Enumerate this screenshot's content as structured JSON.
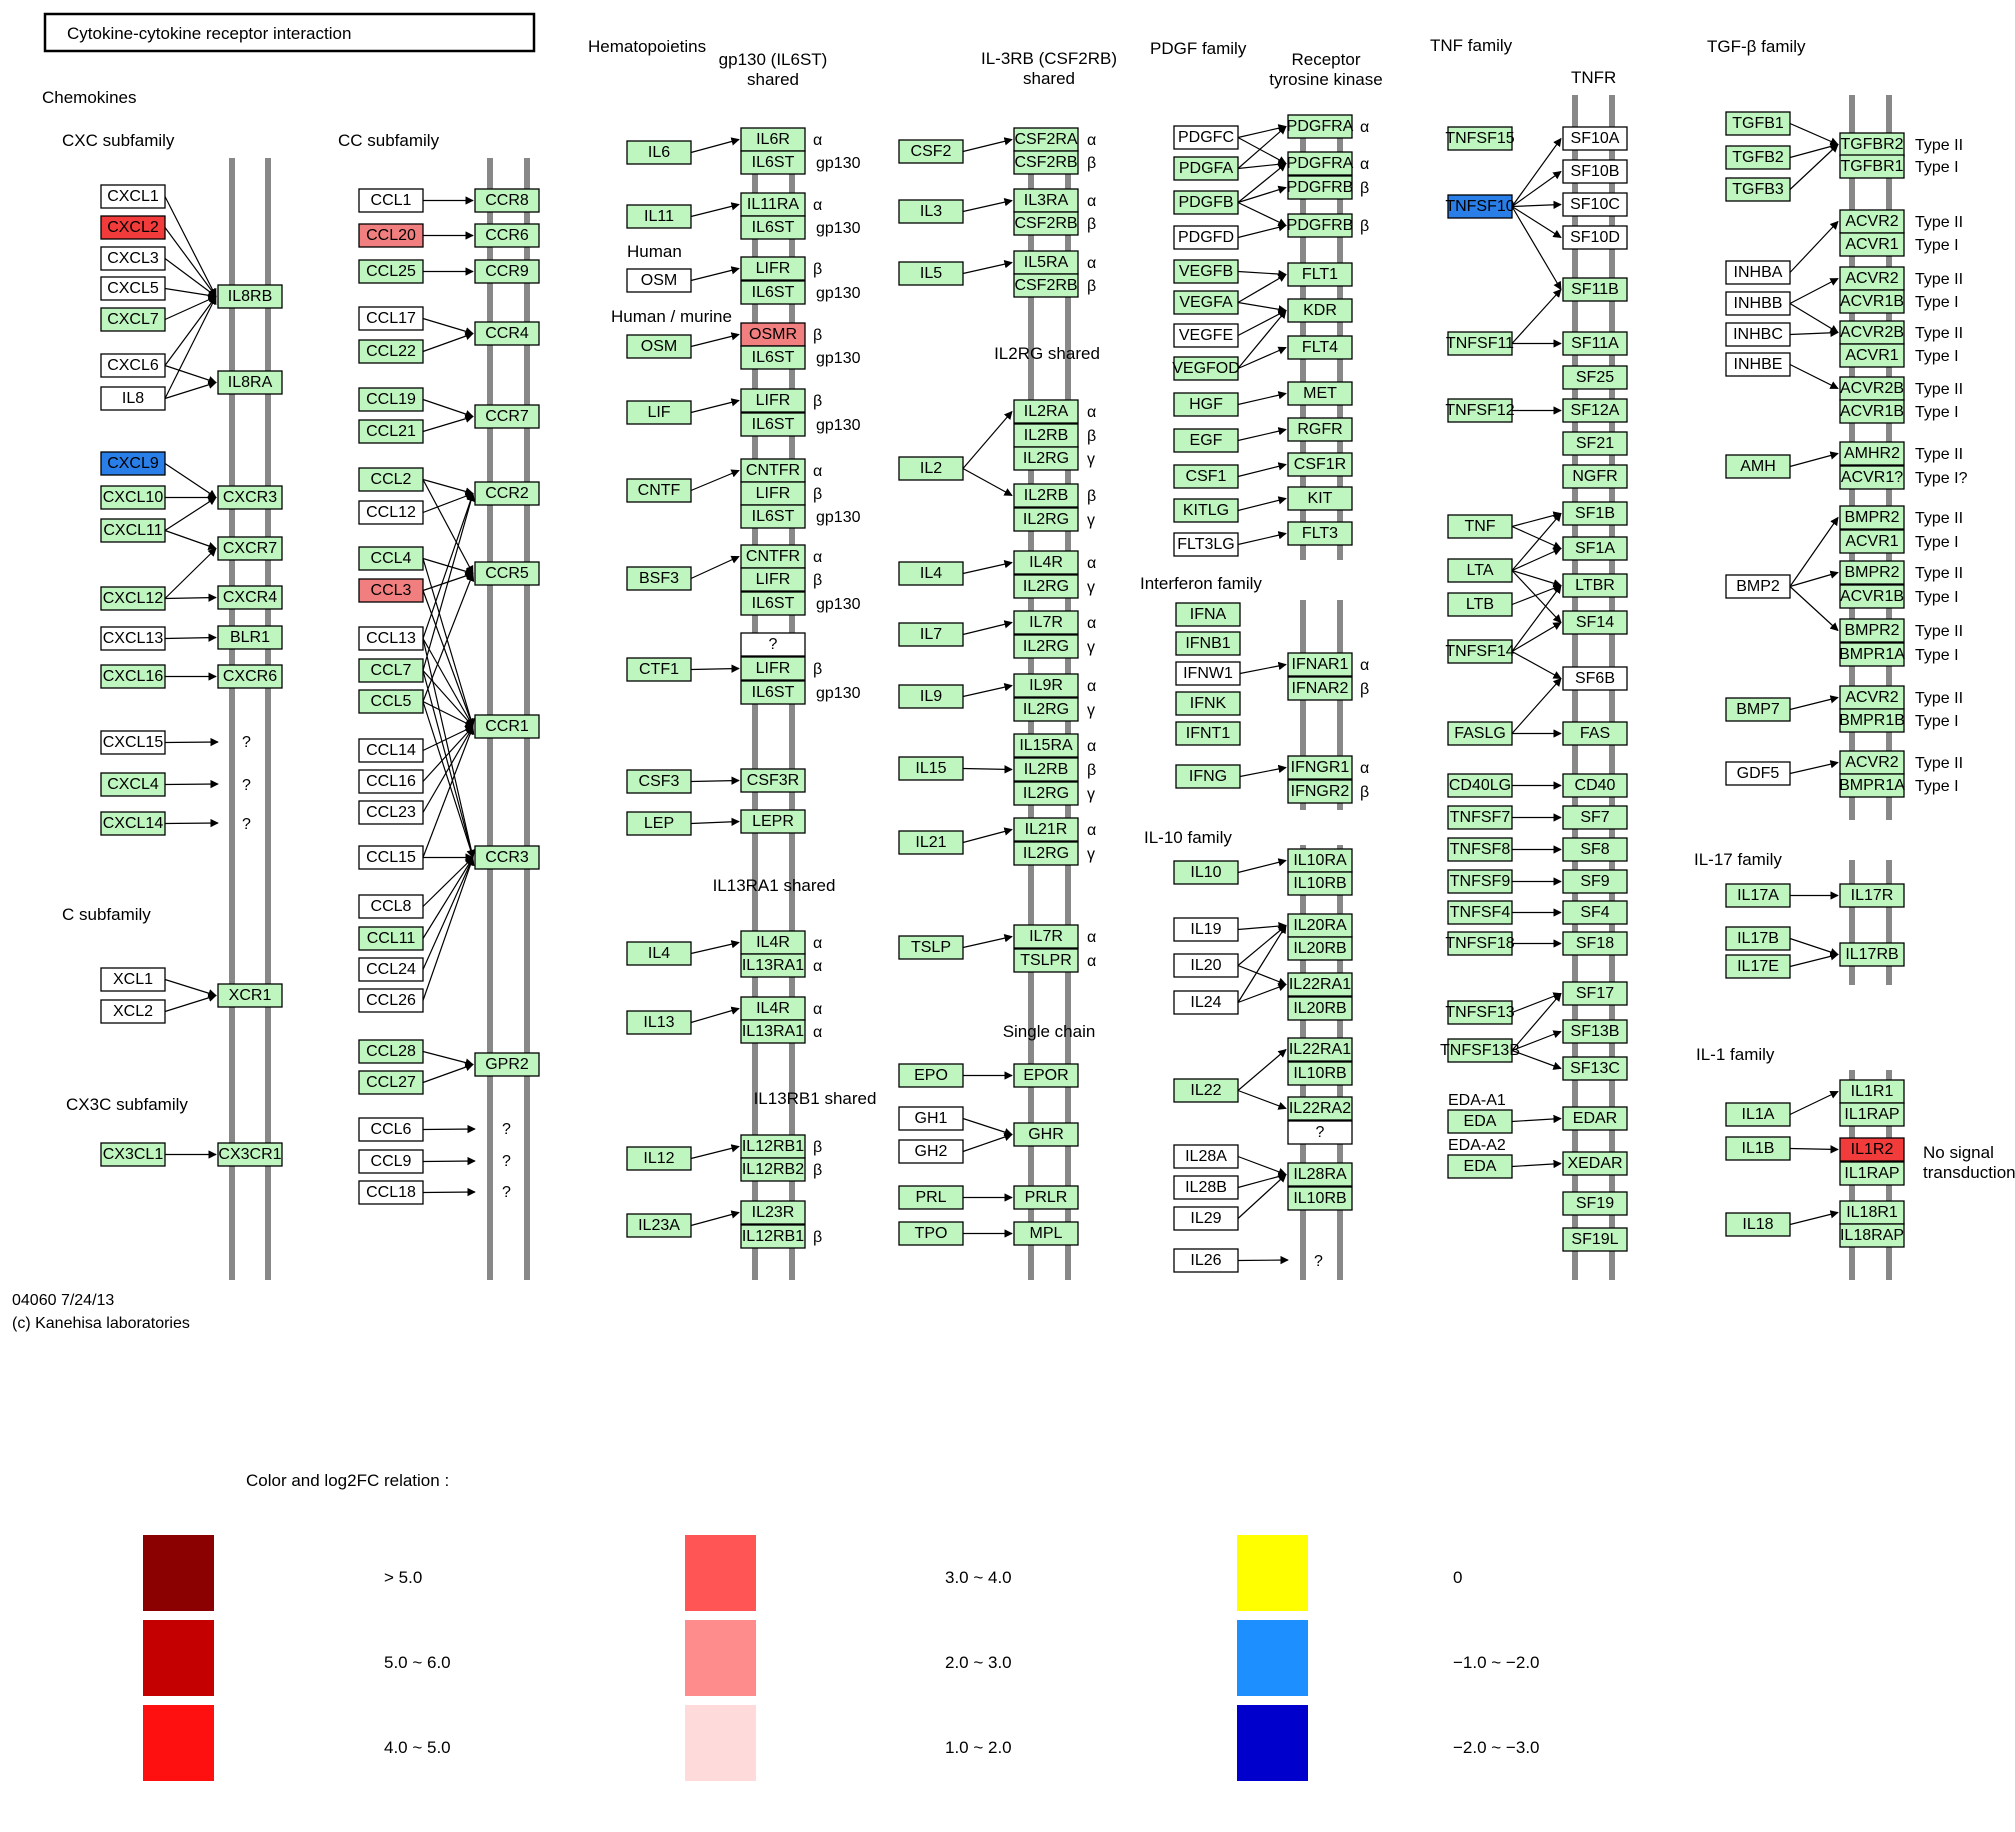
{
  "title": "Cytokine-cytokine receptor interaction",
  "colors": {
    "default": "#bff5bf",
    "white": "#ffffff",
    "up_strong": "#f23c3c",
    "up_mid": "#f27f7f",
    "down": "#2a7ee8",
    "bar": "#888888"
  },
  "group_labels": {
    "chemokines": "Chemokines",
    "cxc": "CXC subfamily",
    "cc": "CC subfamily",
    "c": "C subfamily",
    "cx3c": "CX3C subfamily",
    "hematopoietins": "Hematopoietins",
    "gp130": "gp130 (IL6ST)\nshared",
    "human": "Human",
    "human_murine": "Human / murine",
    "il13ra1": "IL13RA1 shared",
    "il13rb1": "IL13RB1 shared",
    "il3rb": "IL-3RB (CSF2RB)\nshared",
    "il2rg": "IL2RG shared",
    "single": "Single chain",
    "pdgf": "PDGF family",
    "rtk": "Receptor\ntyrosine kinase",
    "ifn": "Interferon family",
    "il10": "IL-10 family",
    "tnf": "TNF family",
    "tnfr": "TNFR",
    "tgfb": "TGF-β family",
    "il17": "IL-17 family",
    "il1": "IL-1 family",
    "nosignal": "No signal\ntransduction"
  },
  "footer": {
    "id": "04060 7/24/13",
    "copyright": "(c) Kanehisa laboratories"
  },
  "legend": {
    "title": "Color and log2FC relation :",
    "items": [
      {
        "label": "> 5.0",
        "color": "#8b0000"
      },
      {
        "label": "5.0 ~ 6.0",
        "color": "#c40000"
      },
      {
        "label": "4.0 ~ 5.0",
        "color": "#ff1010"
      },
      {
        "label": "3.0 ~ 4.0",
        "color": "#ff5555"
      },
      {
        "label": "2.0 ~ 3.0",
        "color": "#ff8c8c"
      },
      {
        "label": "1.0 ~ 2.0",
        "color": "#ffdada"
      },
      {
        "label": "0",
        "color": "#ffff00"
      },
      {
        "label": "−1.0 ~ −2.0",
        "color": "#1e8fff"
      },
      {
        "label": "−2.0 ~ −3.0",
        "color": "#0000cc"
      }
    ]
  },
  "genes": {
    "CXCL1": "w",
    "CXCL2": "r",
    "CXCL3": "w",
    "CXCL5": "w",
    "CXCL7": "g",
    "CXCL6": "w",
    "IL8": "w",
    "CXCL9": "b",
    "CXCL10": "g",
    "CXCL11": "g",
    "CXCL12": "g",
    "CXCL13": "w",
    "CXCL16": "g",
    "CXCL15": "w",
    "CXCL4": "g",
    "CXCL14": "g",
    "XCL1": "w",
    "XCL2": "w",
    "CX3CL1": "g",
    "IL8RB": "g",
    "IL8RA": "g",
    "CXCR3": "g",
    "CXCR7": "g",
    "CXCR4": "g",
    "BLR1": "g",
    "CXCR6": "g",
    "XCR1": "g",
    "CX3CR1": "g",
    "CCL1": "w",
    "CCL20": "m",
    "CCL25": "g",
    "CCL17": "w",
    "CCL22": "g",
    "CCL19": "g",
    "CCL21": "g",
    "CCL2": "g",
    "CCL12": "w",
    "CCL4": "g",
    "CCL3": "m",
    "CCL13": "w",
    "CCL7": "g",
    "CCL5": "g",
    "CCL14": "w",
    "CCL16": "w",
    "CCL23": "w",
    "CCL15": "w",
    "CCL8": "w",
    "CCL11": "g",
    "CCL24": "w",
    "CCL26": "w",
    "CCL28": "g",
    "CCL27": "g",
    "CCL6": "w",
    "CCL9": "w",
    "CCL18": "w",
    "CCR8": "g",
    "CCR6": "g",
    "CCR9": "g",
    "CCR4": "g",
    "CCR7": "g",
    "CCR2": "g",
    "CCR5": "g",
    "CCR1": "g",
    "CCR3": "g",
    "GPR2": "g",
    "IL6": "g",
    "IL11": "g",
    "OSM": "w",
    "OSM ": "g",
    "LIF": "g",
    "CNTF": "g",
    "BSF3": "g",
    "CTF1": "g",
    "CSF3": "g",
    "LEP": "g",
    "IL4": "g",
    "IL13": "g",
    "IL12": "g",
    "IL23A": "g",
    "IL6R": "g",
    "IL6ST": "g",
    "IL11RA": "g",
    "LIFR": "g",
    "OSMR": "m",
    "CNTFR": "g",
    "?": "w",
    "CSF3R": "g",
    "LEPR": "g",
    "IL4R": "g",
    "IL13RA1": "g",
    "IL12RB1": "g",
    "IL12RB2": "g",
    "IL23R": "g",
    "CSF2": "g",
    "IL3": "g",
    "IL5": "g",
    "IL2": "g",
    "IL4 ": "g",
    "IL7": "g",
    "IL9": "g",
    "IL15": "g",
    "IL21": "g",
    "TSLP": "g",
    "EPO": "g",
    "GH1": "w",
    "GH2": "w",
    "PRL": "g",
    "TPO": "g",
    "CSF2RA": "g",
    "CSF2RB": "g",
    "IL3RA": "g",
    "IL5RA": "g",
    "IL2RA": "g",
    "IL2RB": "g",
    "IL2RG": "g",
    "IL7R": "g",
    "IL9R": "g",
    "IL15RA": "g",
    "IL21R": "g",
    "TSLPR": "g",
    "EPOR": "g",
    "GHR": "g",
    "PRLR": "g",
    "MPL": "g",
    "PDGFC": "w",
    "PDGFA": "g",
    "PDGFB": "g",
    "PDGFD": "w",
    "VEGFB": "g",
    "VEGFA": "g",
    "VEGFE": "w",
    "VEGFOD": "g",
    "HGF": "g",
    "EGF": "g",
    "CSF1": "g",
    "KITLG": "g",
    "FLT3LG": "w",
    "PDGFRA": "g",
    "PDGFRB": "g",
    "FLT1": "g",
    "KDR": "g",
    "FLT4": "g",
    "MET": "g",
    "RGFR": "g",
    "CSF1R": "g",
    "KIT": "g",
    "FLT3": "g",
    "IFNA": "g",
    "IFNB1": "g",
    "IFNW1": "w",
    "IFNK": "g",
    "IFNT1": "g",
    "IFNG": "g",
    "IFNAR1": "g",
    "IFNAR2": "g",
    "IFNGR1": "g",
    "IFNGR2": "g",
    "IL10": "g",
    "IL19": "w",
    "IL20": "w",
    "IL24": "w",
    "IL22": "g",
    "IL28A": "w",
    "IL28B": "w",
    "IL29": "w",
    "IL26": "w",
    "IL10RA": "g",
    "IL10RB": "g",
    "IL20RA": "g",
    "IL20RB": "g",
    "IL22RA1": "g",
    "IL22RA2": "g",
    "IL28RA": "g",
    "TNFSF15": "g",
    "TNFSF10": "b",
    "TNFSF11": "g",
    "TNFSF12": "g",
    "TNF": "g",
    "LTA": "g",
    "LTB": "g",
    "TNFSF14": "g",
    "FASLG": "g",
    "CD40LG": "g",
    "TNFSF7": "g",
    "TNFSF8": "g",
    "TNFSF9": "g",
    "TNFSF4": "g",
    "TNFSF18": "g",
    "TNFSF13": "g",
    "TNFSF13B": "g",
    "EDA": "g",
    "SF10A": "w",
    "SF10B": "w",
    "SF10C": "w",
    "SF10D": "w",
    "SF11B": "g",
    "SF11A": "g",
    "SF25": "g",
    "SF12A": "g",
    "SF21": "g",
    "NGFR": "g",
    "SF1B": "g",
    "SF1A": "g",
    "LTBR": "g",
    "SF14": "g",
    "SF6B": "w",
    "FAS": "g",
    "CD40": "g",
    "SF7": "g",
    "SF8": "g",
    "SF9": "g",
    "SF4": "g",
    "SF18": "g",
    "SF17": "g",
    "SF13B": "g",
    "SF13C": "g",
    "EDAR": "g",
    "XEDAR": "g",
    "SF19": "g",
    "SF19L": "g",
    "TGFB1": "g",
    "TGFB2": "g",
    "TGFB3": "g",
    "INHBA": "w",
    "INHBB": "w",
    "INHBC": "w",
    "INHBE": "w",
    "AMH": "g",
    "BMP2": "w",
    "BMP7": "g",
    "GDF5": "w",
    "TGFBR2": "g",
    "TGFBR1": "g",
    "ACVR2": "g",
    "ACVR1": "g",
    "ACVR1B": "g",
    "ACVR2B": "g",
    "AMHR2": "g",
    "ACVR1?": "g",
    "BMPR2": "g",
    "BMPR1B": "g",
    "BMPR1A": "g",
    "IL17A": "g",
    "IL17B": "g",
    "IL17E": "g",
    "IL17R": "g",
    "IL17RB": "g",
    "IL1A": "g",
    "IL1B": "g",
    "IL18": "g",
    "IL1R1": "g",
    "IL1RAP": "g",
    "IL1R2": "r",
    "IL18R1": "g",
    "IL18RAP": "g"
  }
}
